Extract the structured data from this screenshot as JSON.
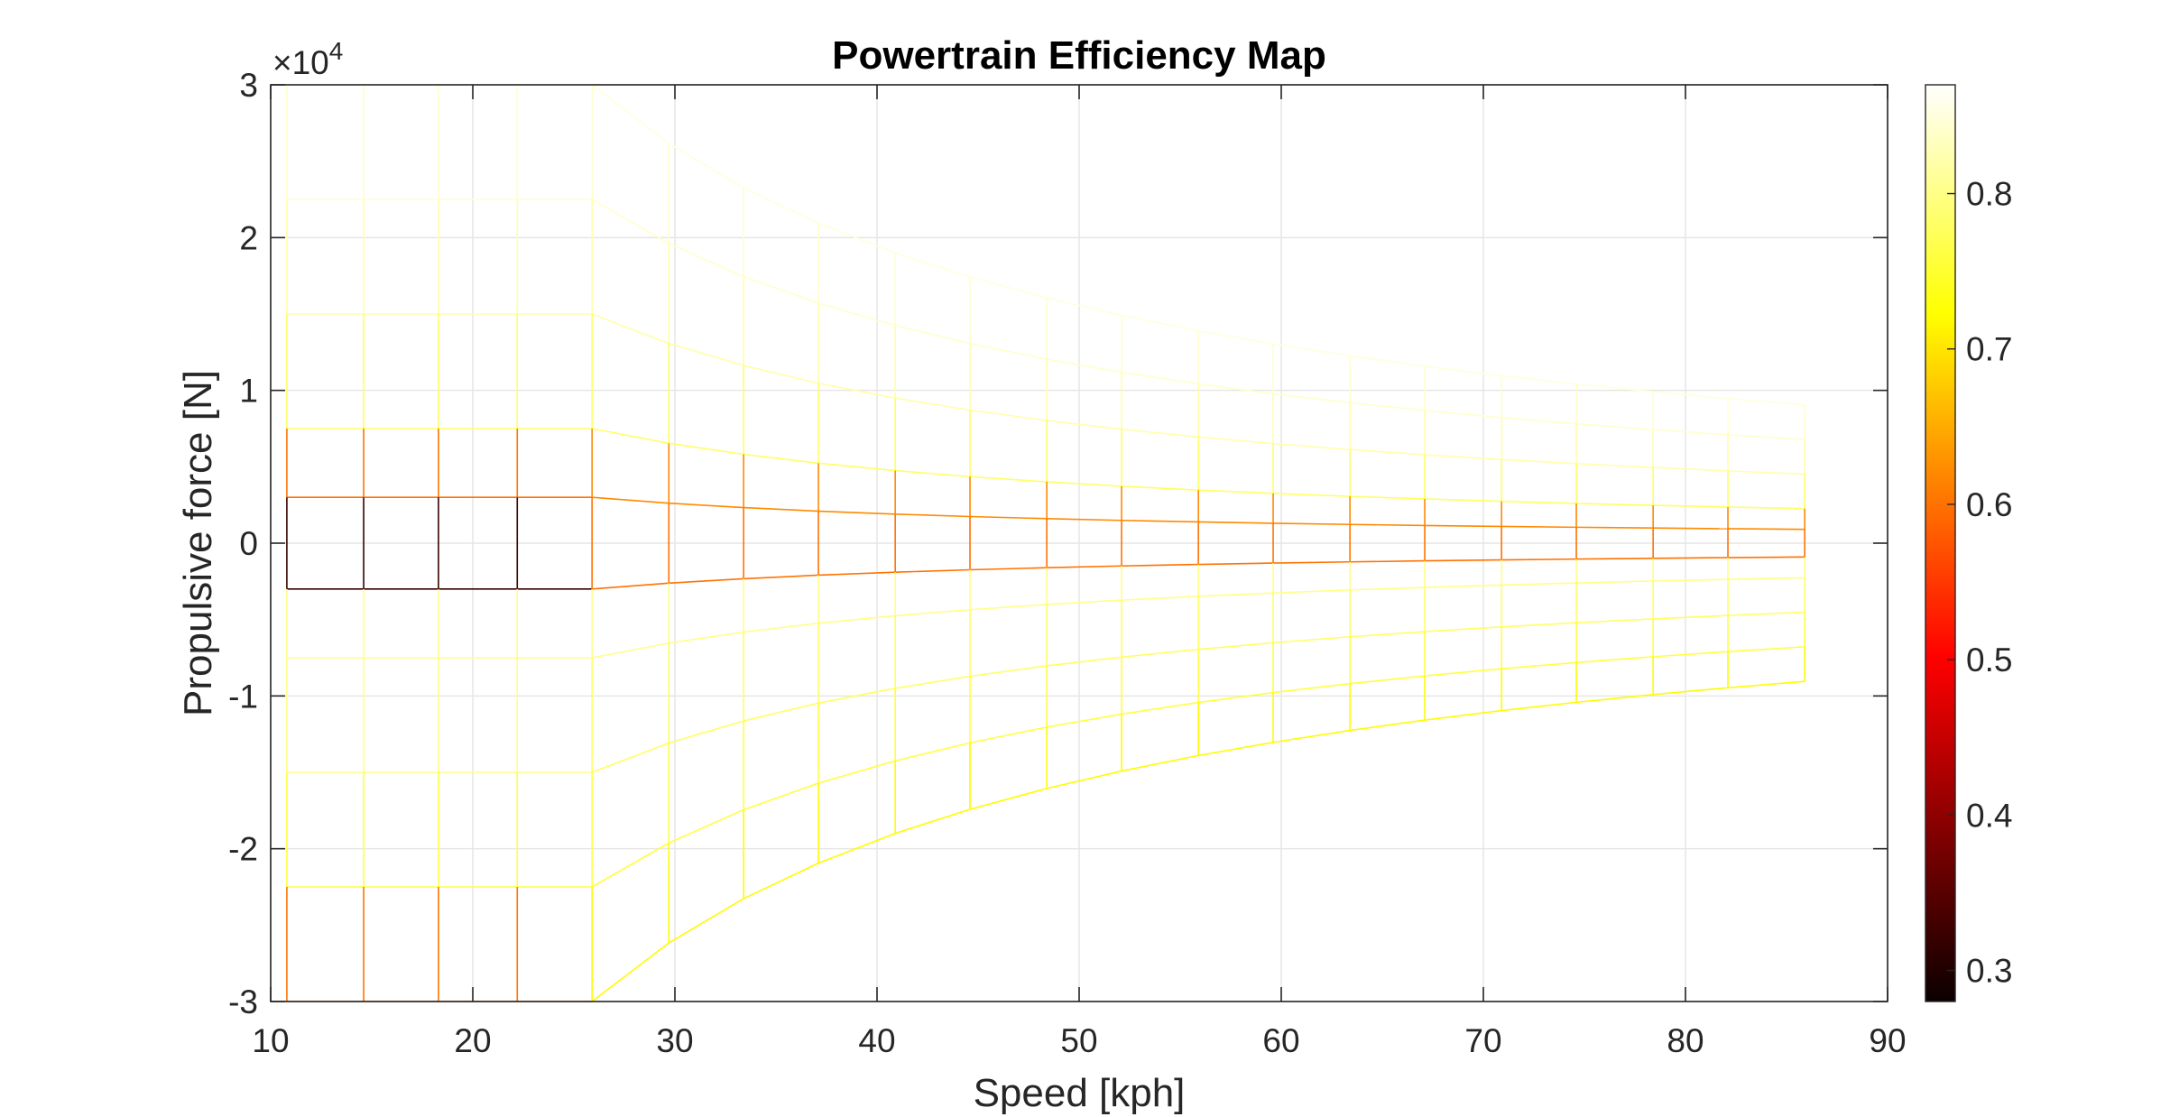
{
  "chart_data": {
    "type": "mesh",
    "title": "Powertrain Efficiency Map",
    "xlabel": "Speed [kph]",
    "ylabel": "Propulsive force [N]",
    "xlim": [
      10,
      90
    ],
    "ylim": [
      -30000,
      30000
    ],
    "x_ticks": [
      10,
      20,
      30,
      40,
      50,
      60,
      70,
      80,
      90
    ],
    "y_ticks": [
      -3,
      -2,
      -1,
      0,
      1,
      2,
      3
    ],
    "y_exponent_base": "×10",
    "y_exponent_power": "4",
    "grid": true,
    "colormap": "hot",
    "colorbar": {
      "range": [
        0.28,
        0.87
      ],
      "ticks": [
        0.3,
        0.4,
        0.5,
        0.6,
        0.7,
        0.8
      ]
    },
    "speed_grid_kph": [
      10.8,
      14.6,
      18.3,
      22.2,
      25.9,
      29.7,
      33.4,
      37.1,
      40.9,
      44.6,
      48.4,
      52.1,
      55.9,
      59.6,
      63.4,
      67.1,
      70.9,
      74.6,
      78.4,
      82.1,
      85.9
    ],
    "torque_level_fractions": [
      -1,
      -0.75,
      -0.5,
      -0.25,
      -0.1,
      0.1,
      0.25,
      0.5,
      0.75,
      1
    ],
    "max_force_low_speed_N": 30000,
    "base_speed_kph": 25.9,
    "efficiency_by_level": [
      0.72,
      0.76,
      0.78,
      0.8,
      0.6,
      0.62,
      0.78,
      0.82,
      0.84,
      0.85
    ],
    "efficiency_by_level_low_speed": [
      0.6,
      0.76,
      0.8,
      0.8,
      0.32,
      0.6,
      0.78,
      0.82,
      0.84,
      0.84
    ]
  }
}
